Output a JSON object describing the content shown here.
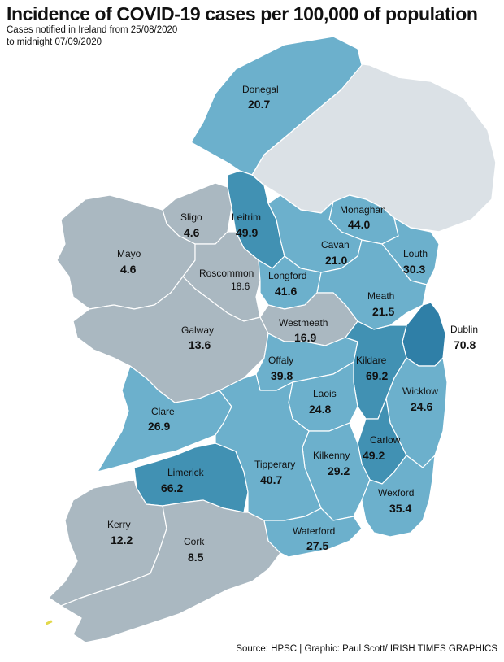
{
  "header": {
    "title": "Incidence of COVID-19 cases per 100,000 of population",
    "subtitle_line1": "Cases notified in Ireland from 25/08/2020",
    "subtitle_line2": "to midnight 07/09/2020"
  },
  "footer": {
    "source": "Source: HPSC  |  Graphic: Paul Scott/ IRISH TIMES GRAPHICS"
  },
  "colors": {
    "northern_ireland": "#dbe1e6",
    "lowest": "#aab8c1",
    "low": "#6cb0cc",
    "high": "#4191b3",
    "highest": "#2f7fa7",
    "border": "#ffffff"
  },
  "counties": [
    {
      "name": "Donegal",
      "value": "20.7"
    },
    {
      "name": "Sligo",
      "value": "4.6"
    },
    {
      "name": "Leitrim",
      "value": "49.9"
    },
    {
      "name": "Monaghan",
      "value": "44.0"
    },
    {
      "name": "Mayo",
      "value": "4.6"
    },
    {
      "name": "Roscommon",
      "value": "18.6"
    },
    {
      "name": "Cavan",
      "value": "21.0"
    },
    {
      "name": "Louth",
      "value": "30.3"
    },
    {
      "name": "Longford",
      "value": "41.6"
    },
    {
      "name": "Meath",
      "value": "21.5"
    },
    {
      "name": "Westmeath",
      "value": "16.9"
    },
    {
      "name": "Galway",
      "value": "13.6"
    },
    {
      "name": "Dublin",
      "value": "70.8"
    },
    {
      "name": "Offaly",
      "value": "39.8"
    },
    {
      "name": "Kildare",
      "value": "69.2"
    },
    {
      "name": "Laois",
      "value": "24.8"
    },
    {
      "name": "Wicklow",
      "value": "24.6"
    },
    {
      "name": "Clare",
      "value": "26.9"
    },
    {
      "name": "Carlow",
      "value": "49.2"
    },
    {
      "name": "Kilkenny",
      "value": "29.2"
    },
    {
      "name": "Limerick",
      "value": "66.2"
    },
    {
      "name": "Tipperary",
      "value": "40.7"
    },
    {
      "name": "Wexford",
      "value": "35.4"
    },
    {
      "name": "Kerry",
      "value": "12.2"
    },
    {
      "name": "Cork",
      "value": "8.5"
    },
    {
      "name": "Waterford",
      "value": "27.5"
    }
  ]
}
